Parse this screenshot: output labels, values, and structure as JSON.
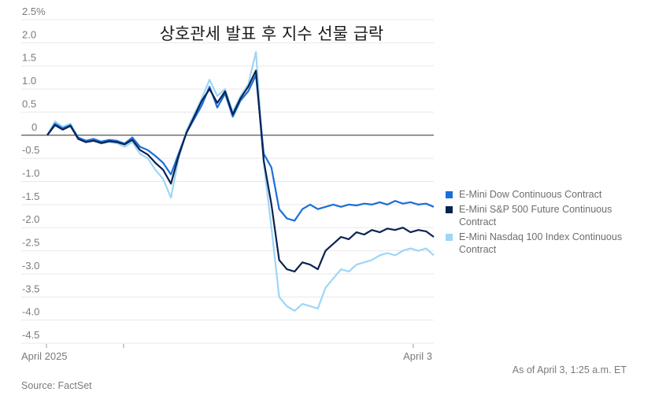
{
  "chart_data": {
    "type": "line",
    "title": "상호관세 발표 후 지수 선물 급락",
    "xlabel": "",
    "ylabel": "",
    "yunit": "%",
    "ylim": [
      -4.5,
      2.5
    ],
    "yticks": [
      2.5,
      2.0,
      1.5,
      1.0,
      0.5,
      0,
      -0.5,
      -1.0,
      -1.5,
      -2.0,
      -2.5,
      -3.0,
      -3.5,
      -4.0,
      -4.5
    ],
    "ytick_labels": [
      "2.5%",
      "2.0",
      "1.5",
      "1.0",
      "0.5",
      "0",
      "-0.5",
      "-1.0",
      "-1.5",
      "-2.0",
      "-2.5",
      "-3.0",
      "-3.5",
      "-4.0",
      "-4.5"
    ],
    "xtick_labels": [
      "April 2025",
      "",
      "April 3"
    ],
    "grid": true,
    "legend_position": "right",
    "x": [
      0,
      2,
      4,
      6,
      8,
      10,
      12,
      14,
      16,
      18,
      20,
      22,
      24,
      26,
      28,
      30,
      32,
      34,
      36,
      38,
      40,
      42,
      44,
      46,
      48,
      50,
      52,
      54,
      56,
      58,
      60,
      62,
      64,
      66,
      68,
      70,
      72,
      74,
      76,
      78,
      80,
      82,
      84,
      86,
      88,
      90,
      92,
      94,
      96,
      98,
      100
    ],
    "series": [
      {
        "name": "E-Mini Dow Continuous Contract",
        "color": "#1a6fd8",
        "values": [
          0.0,
          0.25,
          0.15,
          0.22,
          -0.05,
          -0.12,
          -0.08,
          -0.14,
          -0.1,
          -0.12,
          -0.18,
          -0.05,
          -0.25,
          -0.32,
          -0.45,
          -0.6,
          -0.85,
          -0.4,
          0.05,
          0.35,
          0.65,
          1.05,
          0.6,
          0.9,
          0.4,
          0.75,
          0.95,
          1.3,
          -0.4,
          -0.7,
          -1.6,
          -1.8,
          -1.85,
          -1.6,
          -1.5,
          -1.6,
          -1.55,
          -1.5,
          -1.55,
          -1.5,
          -1.52,
          -1.48,
          -1.5,
          -1.45,
          -1.5,
          -1.42,
          -1.48,
          -1.45,
          -1.5,
          -1.48,
          -1.55
        ]
      },
      {
        "name": "E-Mini S&P 500 Future Continuous Contract",
        "color": "#0b2250",
        "values": [
          0.0,
          0.22,
          0.12,
          0.2,
          -0.08,
          -0.15,
          -0.12,
          -0.17,
          -0.13,
          -0.15,
          -0.2,
          -0.1,
          -0.32,
          -0.42,
          -0.6,
          -0.75,
          -1.05,
          -0.45,
          0.05,
          0.4,
          0.75,
          1.0,
          0.7,
          0.95,
          0.45,
          0.8,
          1.05,
          1.4,
          -0.55,
          -1.5,
          -2.7,
          -2.9,
          -2.95,
          -2.75,
          -2.8,
          -2.9,
          -2.5,
          -2.35,
          -2.2,
          -2.25,
          -2.1,
          -2.15,
          -2.05,
          -2.1,
          -2.02,
          -2.05,
          -2.0,
          -2.1,
          -2.05,
          -2.08,
          -2.2
        ]
      },
      {
        "name": "E-Mini Nasdaq 100 Index Continuous Contract",
        "color": "#9dd6f7",
        "values": [
          0.0,
          0.3,
          0.18,
          0.25,
          -0.06,
          -0.15,
          -0.12,
          -0.18,
          -0.15,
          -0.17,
          -0.25,
          -0.15,
          -0.4,
          -0.5,
          -0.75,
          -0.95,
          -1.35,
          -0.5,
          0.1,
          0.45,
          0.8,
          1.2,
          0.85,
          1.0,
          0.5,
          0.85,
          1.1,
          1.8,
          -0.6,
          -2.0,
          -3.5,
          -3.7,
          -3.8,
          -3.65,
          -3.7,
          -3.75,
          -3.3,
          -3.1,
          -2.9,
          -2.95,
          -2.8,
          -2.75,
          -2.7,
          -2.6,
          -2.55,
          -2.6,
          -2.5,
          -2.45,
          -2.5,
          -2.45,
          -2.6
        ]
      }
    ]
  },
  "footer": {
    "as_of": "As of April 3, 1:25 a.m. ET",
    "source": "Source: FactSet"
  }
}
